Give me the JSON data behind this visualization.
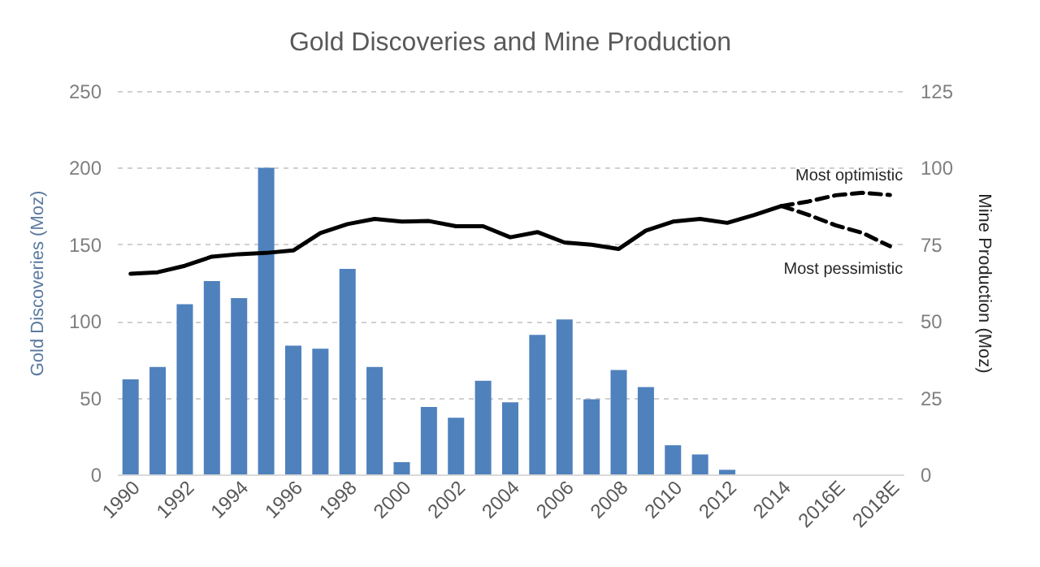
{
  "chart_data": {
    "type": "bar",
    "title": "Gold Discoveries and Mine Production",
    "categories": [
      "1990",
      null,
      "1992",
      null,
      "1994",
      null,
      "1996",
      null,
      "1998",
      null,
      "2000",
      null,
      "2002",
      null,
      "2004",
      null,
      "2006",
      null,
      "2008",
      null,
      "2010",
      null,
      "2012",
      null,
      "2014",
      null,
      "2016E",
      null,
      "2018E"
    ],
    "series": [
      {
        "type": "bar",
        "color": "#4f81bd",
        "values": [
          62,
          70,
          111,
          126,
          115,
          200,
          84,
          82,
          134,
          70,
          8,
          44,
          37,
          61,
          47,
          91,
          101,
          49,
          68,
          57,
          19,
          13,
          3,
          null,
          null,
          null,
          null,
          null,
          null
        ]
      },
      {
        "type": "line",
        "axis": "y2",
        "color": "#000000",
        "line_style": "solid",
        "values": [
          65.4,
          65.9,
          68,
          71,
          71.8,
          72.2,
          73,
          78.7,
          81.6,
          83.3,
          82.4,
          82.6,
          80.9,
          80.9,
          77.3,
          79,
          75.6,
          74.9,
          73.5,
          79.5,
          82.4,
          83.3,
          82,
          84.6,
          87.5,
          null,
          null,
          null,
          null
        ]
      },
      {
        "type": "line",
        "name": "Most optimistic",
        "axis": "y2",
        "color": "#000000",
        "line_style": "dashed",
        "values": [
          null,
          null,
          null,
          null,
          null,
          null,
          null,
          null,
          null,
          null,
          null,
          null,
          null,
          null,
          null,
          null,
          null,
          null,
          null,
          null,
          null,
          null,
          null,
          null,
          87.5,
          89,
          91,
          91.8,
          91.1
        ]
      },
      {
        "type": "line",
        "name": "Most pessimistic",
        "axis": "y2",
        "color": "#000000",
        "line_style": "dashed",
        "values": [
          null,
          null,
          null,
          null,
          null,
          null,
          null,
          null,
          null,
          null,
          null,
          null,
          null,
          null,
          null,
          null,
          null,
          null,
          null,
          null,
          null,
          null,
          null,
          null,
          87.5,
          84.6,
          81.2,
          78.7,
          74.4
        ]
      }
    ],
    "ylabel": "Gold Discoveries (Moz)",
    "y2label": "Mine Production (Moz)",
    "ylim": [
      0,
      250
    ],
    "yticks": [
      0,
      50,
      100,
      150,
      200,
      250
    ],
    "y2lim": [
      0,
      125
    ],
    "y2ticks": [
      0,
      25,
      50,
      75,
      100,
      125
    ],
    "grid": "y"
  }
}
